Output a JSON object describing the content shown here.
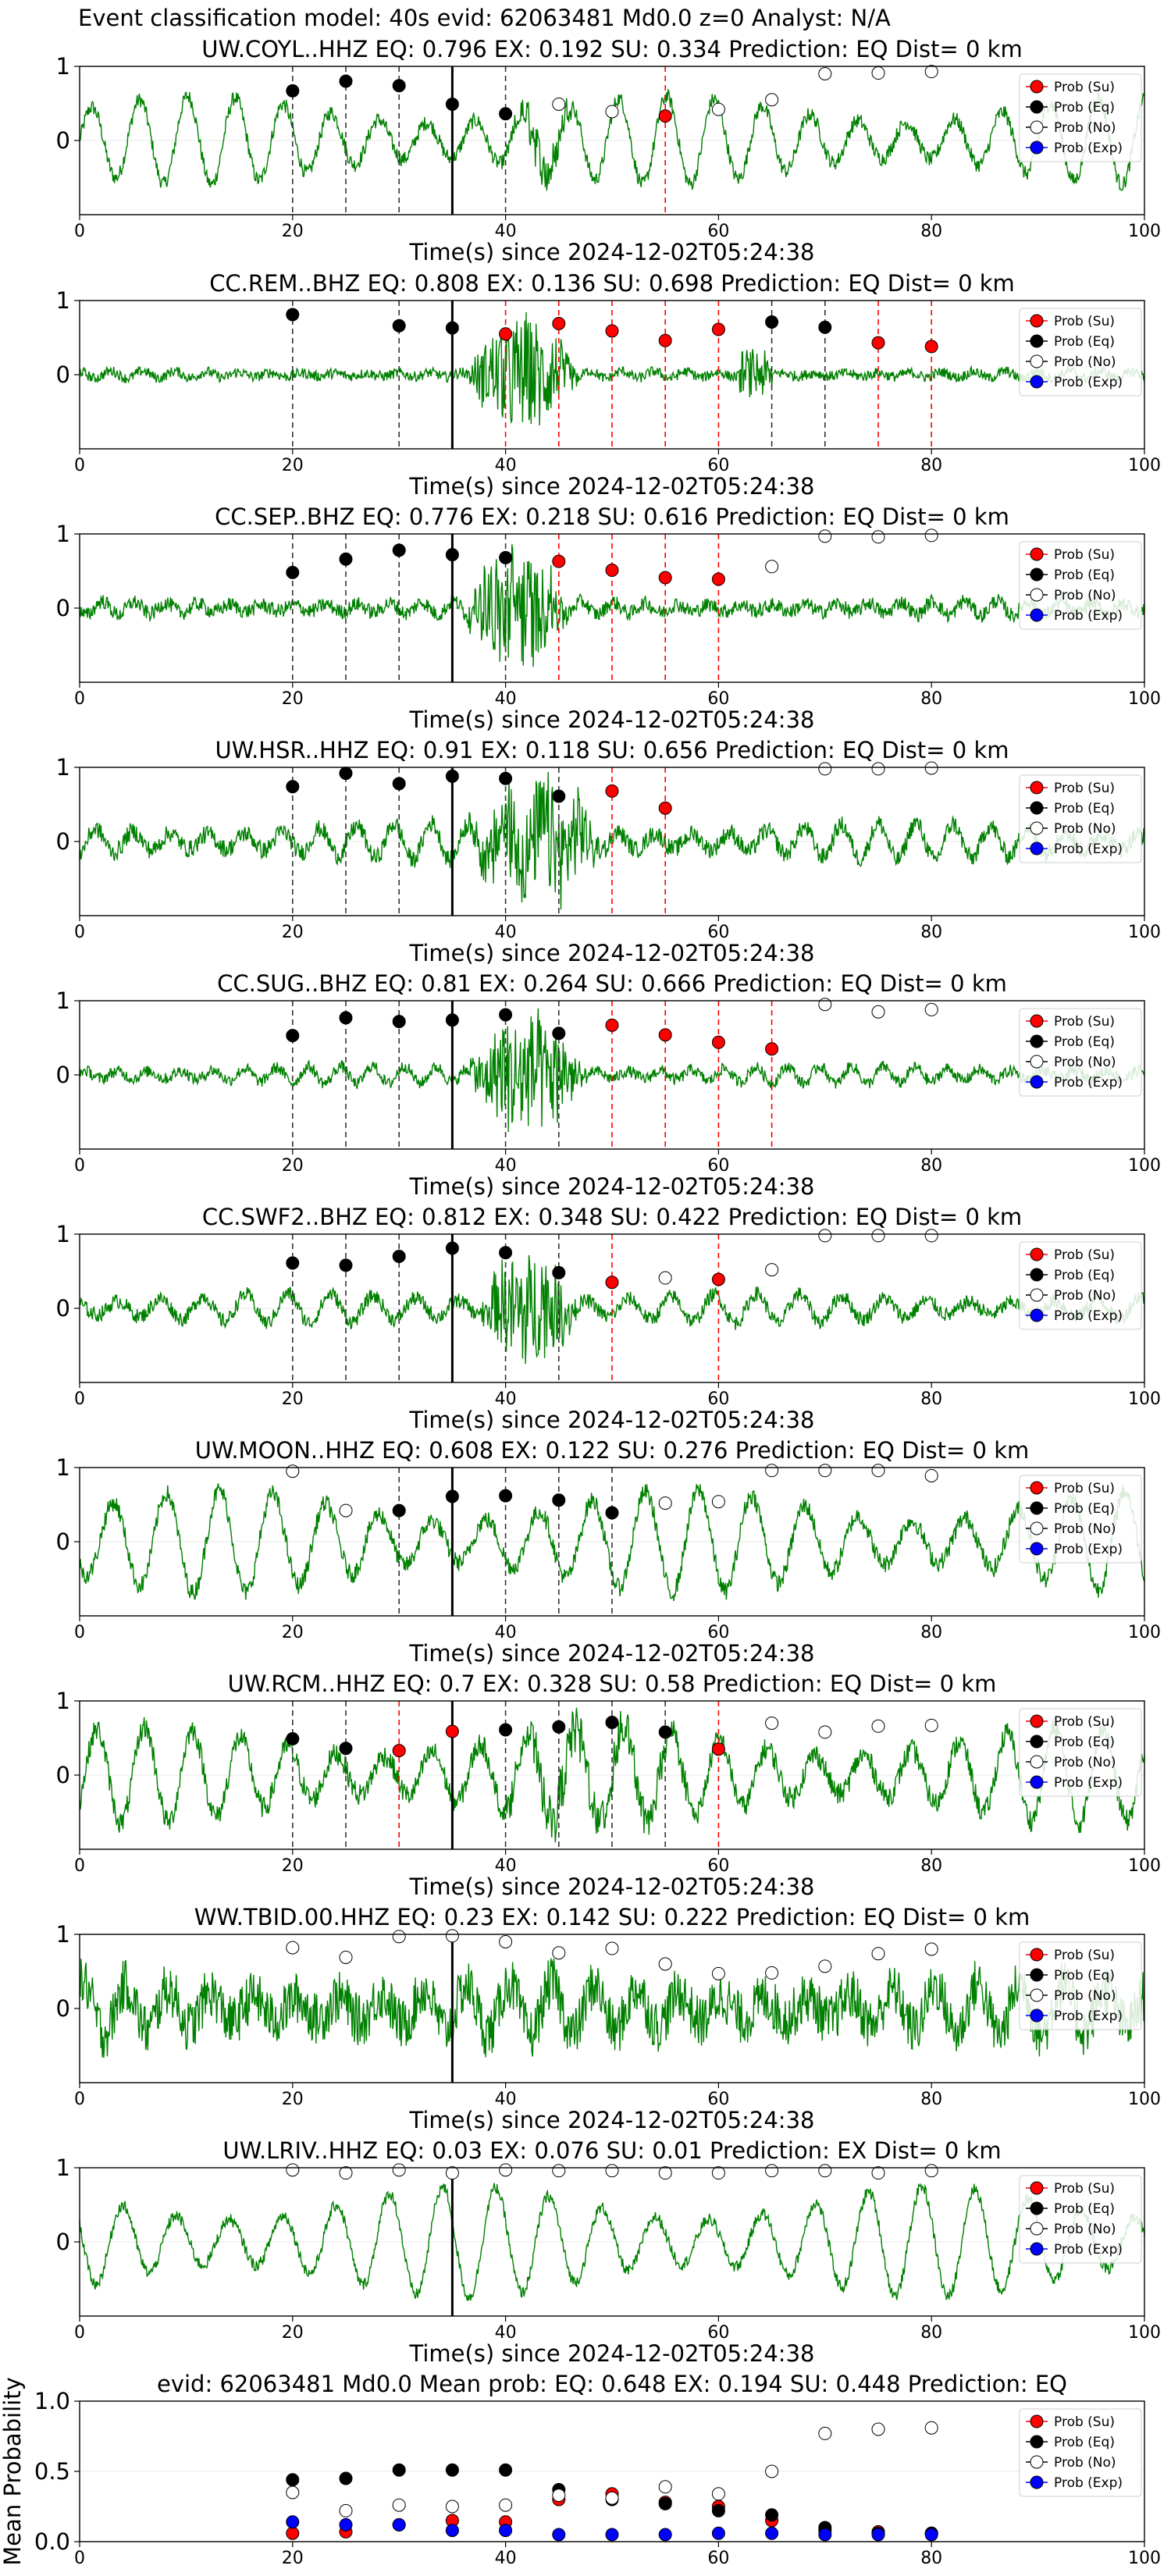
{
  "figure_title": "Event classification model: 40s evid: 62063481 Md0.0 z=0 Analyst: N/A",
  "colors": {
    "waveform": "#008000",
    "su": "#ff0000",
    "eq": "#000000",
    "no": "#ffffff",
    "exp": "#0000ff",
    "vline": "#000000"
  },
  "legend": [
    "Prob (Su)",
    "Prob (Eq)",
    "Prob (No)",
    "Prob (Exp)"
  ],
  "chart_data": [
    {
      "type": "scatter",
      "title": "UW.COYL..HHZ   EQ: 0.796  EX: 0.192  SU: 0.334   Prediction: EQ    Dist= 0 km",
      "xlabel": "Time(s) since 2024-12-02T05:24:38",
      "xlim": [
        0,
        100
      ],
      "ylim": [
        -1,
        1
      ],
      "yticks": [
        "1",
        "0"
      ],
      "xticks": [
        "0",
        "20",
        "40",
        "60",
        "80",
        "100"
      ],
      "arrival_time": 35,
      "waveform": {
        "amp": 0.6,
        "noise": 0.1,
        "period": 4.5,
        "burst": [
          40,
          47,
          0.3
        ]
      },
      "points": [
        {
          "t": 20,
          "p": 0.67,
          "c": "eq"
        },
        {
          "t": 25,
          "p": 0.8,
          "c": "eq"
        },
        {
          "t": 30,
          "p": 0.74,
          "c": "eq"
        },
        {
          "t": 35,
          "p": 0.49,
          "c": "eq"
        },
        {
          "t": 40,
          "p": 0.36,
          "c": "eq"
        },
        {
          "t": 45,
          "p": 0.49,
          "c": "no"
        },
        {
          "t": 50,
          "p": 0.39,
          "c": "no"
        },
        {
          "t": 55,
          "p": 0.33,
          "c": "su"
        },
        {
          "t": 60,
          "p": 0.42,
          "c": "no"
        },
        {
          "t": 65,
          "p": 0.55,
          "c": "no"
        },
        {
          "t": 70,
          "p": 0.9,
          "c": "no"
        },
        {
          "t": 75,
          "p": 0.91,
          "c": "no"
        },
        {
          "t": 80,
          "p": 0.93,
          "c": "no"
        }
      ]
    },
    {
      "type": "scatter",
      "title": "CC.REM..BHZ   EQ: 0.808  EX: 0.136  SU: 0.698   Prediction: EQ    Dist= 0 km",
      "xlabel": "Time(s) since 2024-12-02T05:24:38",
      "xlim": [
        0,
        100
      ],
      "ylim": [
        -1,
        1
      ],
      "yticks": [
        "1",
        "0"
      ],
      "xticks": [
        "0",
        "20",
        "40",
        "60",
        "80",
        "100"
      ],
      "arrival_time": 35,
      "waveform": {
        "amp": 0.05,
        "noise": 0.07,
        "period": 3,
        "burst": [
          36,
          47,
          0.8
        ],
        "burst2": [
          62,
          65,
          0.3
        ]
      },
      "points": [
        {
          "t": 20,
          "p": 0.81,
          "c": "eq"
        },
        {
          "t": 30,
          "p": 0.66,
          "c": "eq"
        },
        {
          "t": 35,
          "p": 0.63,
          "c": "eq"
        },
        {
          "t": 40,
          "p": 0.55,
          "c": "su"
        },
        {
          "t": 45,
          "p": 0.69,
          "c": "su"
        },
        {
          "t": 50,
          "p": 0.59,
          "c": "su"
        },
        {
          "t": 55,
          "p": 0.46,
          "c": "su"
        },
        {
          "t": 60,
          "p": 0.61,
          "c": "su"
        },
        {
          "t": 65,
          "p": 0.71,
          "c": "eq"
        },
        {
          "t": 70,
          "p": 0.64,
          "c": "eq"
        },
        {
          "t": 75,
          "p": 0.43,
          "c": "su"
        },
        {
          "t": 80,
          "p": 0.38,
          "c": "su"
        }
      ]
    },
    {
      "type": "scatter",
      "title": "CC.SEP..BHZ   EQ: 0.776  EX: 0.218  SU: 0.616   Prediction: EQ    Dist= 0 km",
      "xlabel": "Time(s) since 2024-12-02T05:24:38",
      "xlim": [
        0,
        100
      ],
      "ylim": [
        -1,
        1
      ],
      "yticks": [
        "1",
        "0"
      ],
      "xticks": [
        "0",
        "20",
        "40",
        "60",
        "80",
        "100"
      ],
      "arrival_time": 35,
      "waveform": {
        "amp": 0.1,
        "noise": 0.1,
        "period": 3,
        "burst": [
          36,
          46,
          0.85
        ]
      },
      "points": [
        {
          "t": 20,
          "p": 0.48,
          "c": "eq"
        },
        {
          "t": 25,
          "p": 0.66,
          "c": "eq"
        },
        {
          "t": 30,
          "p": 0.78,
          "c": "eq"
        },
        {
          "t": 35,
          "p": 0.72,
          "c": "eq"
        },
        {
          "t": 40,
          "p": 0.68,
          "c": "eq"
        },
        {
          "t": 45,
          "p": 0.63,
          "c": "su"
        },
        {
          "t": 50,
          "p": 0.51,
          "c": "su"
        },
        {
          "t": 55,
          "p": 0.41,
          "c": "su"
        },
        {
          "t": 60,
          "p": 0.39,
          "c": "su"
        },
        {
          "t": 65,
          "p": 0.56,
          "c": "no"
        },
        {
          "t": 70,
          "p": 0.97,
          "c": "no"
        },
        {
          "t": 75,
          "p": 0.96,
          "c": "no"
        },
        {
          "t": 80,
          "p": 0.98,
          "c": "no"
        }
      ]
    },
    {
      "type": "scatter",
      "title": "UW.HSR..HHZ   EQ: 0.91  EX: 0.118  SU: 0.656   Prediction: EQ    Dist= 0 km",
      "xlabel": "Time(s) since 2024-12-02T05:24:38",
      "xlim": [
        0,
        100
      ],
      "ylim": [
        -1,
        1
      ],
      "yticks": [
        "1",
        "0"
      ],
      "xticks": [
        "0",
        "20",
        "40",
        "60",
        "80",
        "100"
      ],
      "arrival_time": 35,
      "waveform": {
        "amp": 0.25,
        "noise": 0.12,
        "period": 3.5,
        "burst": [
          36,
          50,
          0.75
        ]
      },
      "points": [
        {
          "t": 20,
          "p": 0.74,
          "c": "eq"
        },
        {
          "t": 25,
          "p": 0.92,
          "c": "eq"
        },
        {
          "t": 30,
          "p": 0.78,
          "c": "eq"
        },
        {
          "t": 35,
          "p": 0.88,
          "c": "eq"
        },
        {
          "t": 40,
          "p": 0.85,
          "c": "eq"
        },
        {
          "t": 45,
          "p": 0.61,
          "c": "eq"
        },
        {
          "t": 50,
          "p": 0.68,
          "c": "su"
        },
        {
          "t": 55,
          "p": 0.45,
          "c": "su"
        },
        {
          "t": 70,
          "p": 0.98,
          "c": "no"
        },
        {
          "t": 75,
          "p": 0.98,
          "c": "no"
        },
        {
          "t": 80,
          "p": 0.99,
          "c": "no"
        }
      ]
    },
    {
      "type": "scatter",
      "title": "CC.SUG..BHZ   EQ: 0.81  EX: 0.264  SU: 0.666   Prediction: EQ    Dist= 0 km",
      "xlabel": "Time(s) since 2024-12-02T05:24:38",
      "xlim": [
        0,
        100
      ],
      "ylim": [
        -1,
        1
      ],
      "yticks": [
        "1",
        "0"
      ],
      "xticks": [
        "0",
        "20",
        "40",
        "60",
        "80",
        "100"
      ],
      "arrival_time": 35,
      "waveform": {
        "amp": 0.12,
        "noise": 0.08,
        "period": 3,
        "burst": [
          36,
          48,
          0.85
        ]
      },
      "points": [
        {
          "t": 20,
          "p": 0.53,
          "c": "eq"
        },
        {
          "t": 25,
          "p": 0.77,
          "c": "eq"
        },
        {
          "t": 30,
          "p": 0.72,
          "c": "eq"
        },
        {
          "t": 35,
          "p": 0.74,
          "c": "eq"
        },
        {
          "t": 40,
          "p": 0.81,
          "c": "eq"
        },
        {
          "t": 45,
          "p": 0.56,
          "c": "eq"
        },
        {
          "t": 50,
          "p": 0.67,
          "c": "su"
        },
        {
          "t": 55,
          "p": 0.54,
          "c": "su"
        },
        {
          "t": 60,
          "p": 0.44,
          "c": "su"
        },
        {
          "t": 65,
          "p": 0.35,
          "c": "su"
        },
        {
          "t": 70,
          "p": 0.95,
          "c": "no"
        },
        {
          "t": 75,
          "p": 0.85,
          "c": "no"
        },
        {
          "t": 80,
          "p": 0.88,
          "c": "no"
        }
      ]
    },
    {
      "type": "scatter",
      "title": "CC.SWF2..BHZ   EQ: 0.812  EX: 0.348  SU: 0.422   Prediction: EQ    Dist= 0 km",
      "xlabel": "Time(s) since 2024-12-02T05:24:38",
      "xlim": [
        0,
        100
      ],
      "ylim": [
        -1,
        1
      ],
      "yticks": [
        "1",
        "0"
      ],
      "xticks": [
        "0",
        "20",
        "40",
        "60",
        "80",
        "100"
      ],
      "arrival_time": 35,
      "waveform": {
        "amp": 0.2,
        "noise": 0.1,
        "period": 4,
        "burst": [
          37,
          47,
          0.8
        ]
      },
      "points": [
        {
          "t": 20,
          "p": 0.61,
          "c": "eq"
        },
        {
          "t": 25,
          "p": 0.58,
          "c": "eq"
        },
        {
          "t": 30,
          "p": 0.7,
          "c": "eq"
        },
        {
          "t": 35,
          "p": 0.81,
          "c": "eq"
        },
        {
          "t": 40,
          "p": 0.75,
          "c": "eq"
        },
        {
          "t": 45,
          "p": 0.48,
          "c": "eq"
        },
        {
          "t": 50,
          "p": 0.35,
          "c": "su"
        },
        {
          "t": 55,
          "p": 0.41,
          "c": "no"
        },
        {
          "t": 60,
          "p": 0.39,
          "c": "su"
        },
        {
          "t": 65,
          "p": 0.52,
          "c": "no"
        },
        {
          "t": 70,
          "p": 0.98,
          "c": "no"
        },
        {
          "t": 75,
          "p": 0.98,
          "c": "no"
        },
        {
          "t": 80,
          "p": 0.98,
          "c": "no"
        }
      ]
    },
    {
      "type": "scatter",
      "title": "UW.MOON..HHZ   EQ: 0.608  EX: 0.122  SU: 0.276   Prediction: EQ    Dist= 0 km",
      "xlabel": "Time(s) since 2024-12-02T05:24:38",
      "xlim": [
        0,
        100
      ],
      "ylim": [
        -1,
        1
      ],
      "yticks": [
        "1",
        "0"
      ],
      "xticks": [
        "0",
        "20",
        "40",
        "60",
        "80",
        "100"
      ],
      "arrival_time": 35,
      "waveform": {
        "amp": 0.7,
        "noise": 0.12,
        "period": 5
      },
      "points": [
        {
          "t": 20,
          "p": 0.95,
          "c": "no"
        },
        {
          "t": 25,
          "p": 0.42,
          "c": "no"
        },
        {
          "t": 30,
          "p": 0.42,
          "c": "eq"
        },
        {
          "t": 35,
          "p": 0.61,
          "c": "eq"
        },
        {
          "t": 40,
          "p": 0.62,
          "c": "eq"
        },
        {
          "t": 45,
          "p": 0.56,
          "c": "eq"
        },
        {
          "t": 50,
          "p": 0.39,
          "c": "eq"
        },
        {
          "t": 55,
          "p": 0.52,
          "c": "no"
        },
        {
          "t": 60,
          "p": 0.54,
          "c": "no"
        },
        {
          "t": 65,
          "p": 0.96,
          "c": "no"
        },
        {
          "t": 70,
          "p": 0.96,
          "c": "no"
        },
        {
          "t": 75,
          "p": 0.96,
          "c": "no"
        },
        {
          "t": 80,
          "p": 0.89,
          "c": "no"
        }
      ]
    },
    {
      "type": "scatter",
      "title": "UW.RCM..HHZ   EQ: 0.7  EX: 0.328  SU: 0.58   Prediction: EQ    Dist= 0 km",
      "xlabel": "Time(s) since 2024-12-02T05:24:38",
      "xlim": [
        0,
        100
      ],
      "ylim": [
        -1,
        1
      ],
      "yticks": [
        "1",
        "0"
      ],
      "xticks": [
        "0",
        "20",
        "40",
        "60",
        "80",
        "100"
      ],
      "arrival_time": 35,
      "waveform": {
        "amp": 0.65,
        "noise": 0.15,
        "period": 4.5,
        "burst": [
          38,
          58,
          0.3
        ]
      },
      "points": [
        {
          "t": 20,
          "p": 0.49,
          "c": "eq"
        },
        {
          "t": 25,
          "p": 0.36,
          "c": "eq"
        },
        {
          "t": 30,
          "p": 0.33,
          "c": "su"
        },
        {
          "t": 35,
          "p": 0.59,
          "c": "su"
        },
        {
          "t": 40,
          "p": 0.61,
          "c": "eq"
        },
        {
          "t": 45,
          "p": 0.65,
          "c": "eq"
        },
        {
          "t": 50,
          "p": 0.71,
          "c": "eq"
        },
        {
          "t": 55,
          "p": 0.58,
          "c": "eq"
        },
        {
          "t": 60,
          "p": 0.35,
          "c": "su"
        },
        {
          "t": 65,
          "p": 0.7,
          "c": "no"
        },
        {
          "t": 70,
          "p": 0.58,
          "c": "no"
        },
        {
          "t": 75,
          "p": 0.66,
          "c": "no"
        },
        {
          "t": 80,
          "p": 0.67,
          "c": "no"
        }
      ]
    },
    {
      "type": "scatter",
      "title": "WW.TBID.00.HHZ   EQ: 0.23  EX: 0.142  SU: 0.222   Prediction: EQ    Dist= 0 km",
      "xlabel": "Time(s) since 2024-12-02T05:24:38",
      "xlim": [
        0,
        100
      ],
      "ylim": [
        -1,
        1
      ],
      "yticks": [
        "1",
        "0"
      ],
      "xticks": [
        "0",
        "20",
        "40",
        "60",
        "80",
        "100"
      ],
      "arrival_time": 35,
      "waveform": {
        "amp": 0.35,
        "noise": 0.35,
        "period": 4
      },
      "points": [
        {
          "t": 20,
          "p": 0.82,
          "c": "no"
        },
        {
          "t": 25,
          "p": 0.69,
          "c": "no"
        },
        {
          "t": 30,
          "p": 0.97,
          "c": "no"
        },
        {
          "t": 35,
          "p": 0.98,
          "c": "no"
        },
        {
          "t": 40,
          "p": 0.9,
          "c": "no"
        },
        {
          "t": 45,
          "p": 0.75,
          "c": "no"
        },
        {
          "t": 50,
          "p": 0.81,
          "c": "no"
        },
        {
          "t": 55,
          "p": 0.6,
          "c": "no"
        },
        {
          "t": 60,
          "p": 0.47,
          "c": "no"
        },
        {
          "t": 65,
          "p": 0.48,
          "c": "no"
        },
        {
          "t": 70,
          "p": 0.57,
          "c": "no"
        },
        {
          "t": 75,
          "p": 0.74,
          "c": "no"
        },
        {
          "t": 80,
          "p": 0.8,
          "c": "no"
        }
      ]
    },
    {
      "type": "scatter",
      "title": "UW.LRIV..HHZ   EQ: 0.03  EX: 0.076  SU: 0.01   Prediction: EX    Dist= 0 km",
      "xlabel": "Time(s) since 2024-12-02T05:24:38",
      "xlim": [
        0,
        100
      ],
      "ylim": [
        -1,
        1
      ],
      "yticks": [
        "1",
        "0"
      ],
      "xticks": [
        "0",
        "20",
        "40",
        "60",
        "80",
        "100"
      ],
      "arrival_time": 35,
      "waveform": {
        "amp": 0.75,
        "noise": 0.08,
        "period": 5
      },
      "points": [
        {
          "t": 20,
          "p": 0.97,
          "c": "no"
        },
        {
          "t": 25,
          "p": 0.93,
          "c": "no"
        },
        {
          "t": 30,
          "p": 0.97,
          "c": "no"
        },
        {
          "t": 35,
          "p": 0.93,
          "c": "no"
        },
        {
          "t": 40,
          "p": 0.97,
          "c": "no"
        },
        {
          "t": 45,
          "p": 0.96,
          "c": "no"
        },
        {
          "t": 50,
          "p": 0.96,
          "c": "no"
        },
        {
          "t": 55,
          "p": 0.93,
          "c": "no"
        },
        {
          "t": 60,
          "p": 0.93,
          "c": "no"
        },
        {
          "t": 65,
          "p": 0.96,
          "c": "no"
        },
        {
          "t": 70,
          "p": 0.96,
          "c": "no"
        },
        {
          "t": 75,
          "p": 0.93,
          "c": "no"
        },
        {
          "t": 80,
          "p": 0.96,
          "c": "no"
        }
      ]
    },
    {
      "type": "scatter",
      "title": "evid: 62063481  Md0.0   Mean prob:   EQ: 0.648  EX: 0.194  SU: 0.448   Prediction: EQ",
      "ylabel": "Mean Probability",
      "xlim": [
        0,
        100
      ],
      "ylim": [
        0,
        1
      ],
      "yticks": [
        "0.0",
        "0.5",
        "1.0"
      ],
      "xticks": [
        "0",
        "20",
        "40",
        "60",
        "80",
        "100"
      ],
      "x": [
        20,
        25,
        30,
        35,
        40,
        45,
        50,
        55,
        60,
        65,
        70,
        75,
        80
      ],
      "series": [
        {
          "name": "Prob (Su)",
          "c": "su",
          "values": [
            0.06,
            0.07,
            0.12,
            0.15,
            0.14,
            0.3,
            0.34,
            0.28,
            0.25,
            0.15,
            0.08,
            0.07,
            0.06
          ]
        },
        {
          "name": "Prob (Eq)",
          "c": "eq",
          "values": [
            0.44,
            0.45,
            0.51,
            0.51,
            0.51,
            0.37,
            0.3,
            0.27,
            0.22,
            0.19,
            0.1,
            0.06,
            0.06
          ]
        },
        {
          "name": "Prob (No)",
          "c": "no",
          "values": [
            0.35,
            0.22,
            0.26,
            0.25,
            0.26,
            0.33,
            0.31,
            0.39,
            0.34,
            0.5,
            0.77,
            0.8,
            0.81
          ]
        },
        {
          "name": "Prob (Exp)",
          "c": "exp",
          "values": [
            0.14,
            0.12,
            0.12,
            0.08,
            0.08,
            0.05,
            0.05,
            0.05,
            0.06,
            0.06,
            0.05,
            0.05,
            0.05
          ]
        }
      ]
    }
  ]
}
